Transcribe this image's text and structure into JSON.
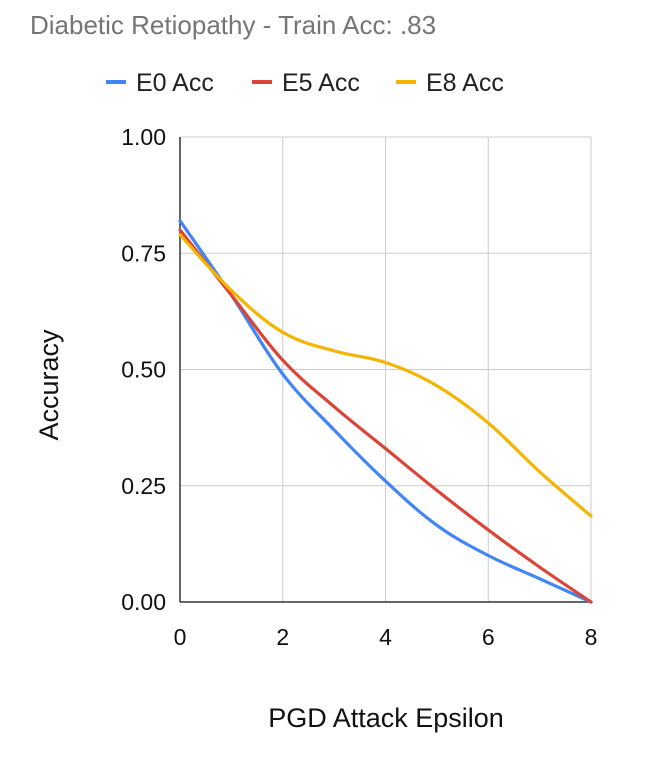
{
  "chart_data": {
    "type": "line",
    "title": "Diabetic Retiopathy - Train Acc: .83",
    "xlabel": "PGD Attack Epsilon",
    "ylabel": "Accuracy",
    "x": [
      0,
      1,
      2,
      3,
      4,
      5,
      6,
      7,
      8
    ],
    "xticks": [
      "0",
      "2",
      "4",
      "6",
      "8"
    ],
    "xtick_values": [
      0,
      2,
      4,
      6,
      8
    ],
    "yticks": [
      "0.00",
      "0.25",
      "0.50",
      "0.75",
      "1.00"
    ],
    "ytick_values": [
      0,
      0.25,
      0.5,
      0.75,
      1
    ],
    "xlim": [
      0,
      8
    ],
    "ylim": [
      0,
      1
    ],
    "grid": true,
    "legend_position": "top",
    "series": [
      {
        "name": "E0 Acc",
        "color": "#4285F4",
        "values": [
          0.82,
          0.66,
          0.49,
          0.37,
          0.26,
          0.165,
          0.1,
          0.05,
          0.0
        ]
      },
      {
        "name": "E5 Acc",
        "color": "#DB4437",
        "values": [
          0.8,
          0.66,
          0.52,
          0.42,
          0.33,
          0.24,
          0.155,
          0.075,
          0.0
        ]
      },
      {
        "name": "E8 Acc",
        "color": "#F4B400",
        "values": [
          0.79,
          0.67,
          0.58,
          0.54,
          0.515,
          0.465,
          0.385,
          0.28,
          0.185
        ]
      }
    ]
  }
}
